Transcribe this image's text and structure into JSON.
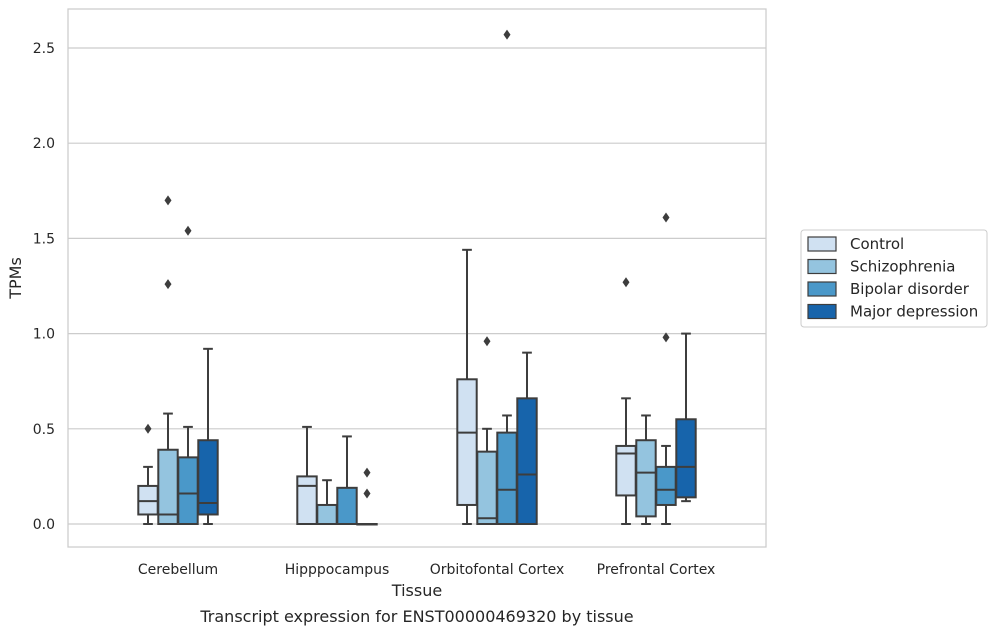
{
  "chart_data": {
    "type": "box",
    "caption": "Transcript expression for ENST00000469320 by tissue",
    "xlabel": "Tissue",
    "ylabel": "TPMs",
    "ylim": [
      -0.12,
      2.7
    ],
    "yticks": [
      0.0,
      0.5,
      1.0,
      1.5,
      2.0,
      2.5
    ],
    "ytick_labels": [
      "0.0",
      "0.5",
      "1.0",
      "1.5",
      "2.0",
      "2.5"
    ],
    "grid": "horizontal",
    "legend_position": "right",
    "categories": [
      "Cerebellum",
      "Hipppocampus",
      "Orbitofontal Cortex",
      "Prefrontal Cortex"
    ],
    "series": [
      {
        "name": "Control",
        "color": "#d0e1f2",
        "boxes": [
          {
            "whislo": 0.0,
            "q1": 0.05,
            "med": 0.12,
            "q3": 0.2,
            "whishi": 0.3,
            "fliers": [
              0.5
            ]
          },
          {
            "whislo": 0.0,
            "q1": 0.0,
            "med": 0.2,
            "q3": 0.25,
            "whishi": 0.51,
            "fliers": []
          },
          {
            "whislo": 0.0,
            "q1": 0.1,
            "med": 0.48,
            "q3": 0.76,
            "whishi": 1.44,
            "fliers": []
          },
          {
            "whislo": 0.0,
            "q1": 0.15,
            "med": 0.37,
            "q3": 0.41,
            "whishi": 0.66,
            "fliers": [
              1.27
            ]
          }
        ]
      },
      {
        "name": "Schizophrenia",
        "color": "#94c4df",
        "boxes": [
          {
            "whislo": 0.0,
            "q1": 0.0,
            "med": 0.05,
            "q3": 0.39,
            "whishi": 0.58,
            "fliers": [
              1.26,
              1.7
            ]
          },
          {
            "whislo": 0.0,
            "q1": 0.0,
            "med": 0.0,
            "q3": 0.1,
            "whishi": 0.23,
            "fliers": []
          },
          {
            "whislo": 0.0,
            "q1": 0.0,
            "med": 0.03,
            "q3": 0.38,
            "whishi": 0.5,
            "fliers": [
              0.96
            ]
          },
          {
            "whislo": 0.0,
            "q1": 0.04,
            "med": 0.27,
            "q3": 0.44,
            "whishi": 0.57,
            "fliers": []
          }
        ]
      },
      {
        "name": "Bipolar disorder",
        "color": "#4a98c9",
        "boxes": [
          {
            "whislo": 0.0,
            "q1": 0.0,
            "med": 0.16,
            "q3": 0.35,
            "whishi": 0.51,
            "fliers": [
              1.54
            ]
          },
          {
            "whislo": 0.0,
            "q1": 0.0,
            "med": 0.0,
            "q3": 0.19,
            "whishi": 0.46,
            "fliers": []
          },
          {
            "whislo": 0.0,
            "q1": 0.0,
            "med": 0.18,
            "q3": 0.48,
            "whishi": 0.57,
            "fliers": [
              2.57
            ]
          },
          {
            "whislo": 0.0,
            "q1": 0.1,
            "med": 0.18,
            "q3": 0.3,
            "whishi": 0.41,
            "fliers": [
              0.98,
              1.61
            ]
          }
        ]
      },
      {
        "name": "Major depression",
        "color": "#1764ab",
        "boxes": [
          {
            "whislo": 0.0,
            "q1": 0.05,
            "med": 0.11,
            "q3": 0.44,
            "whishi": 0.92,
            "fliers": []
          },
          {
            "whislo": 0.0,
            "q1": 0.0,
            "med": 0.0,
            "q3": 0.0,
            "whishi": 0.0,
            "fliers": [
              0.16,
              0.27
            ]
          },
          {
            "whislo": 0.0,
            "q1": 0.0,
            "med": 0.26,
            "q3": 0.66,
            "whishi": 0.9,
            "fliers": []
          },
          {
            "whislo": 0.12,
            "q1": 0.14,
            "med": 0.3,
            "q3": 0.55,
            "whishi": 1.0,
            "fliers": []
          }
        ]
      }
    ]
  }
}
